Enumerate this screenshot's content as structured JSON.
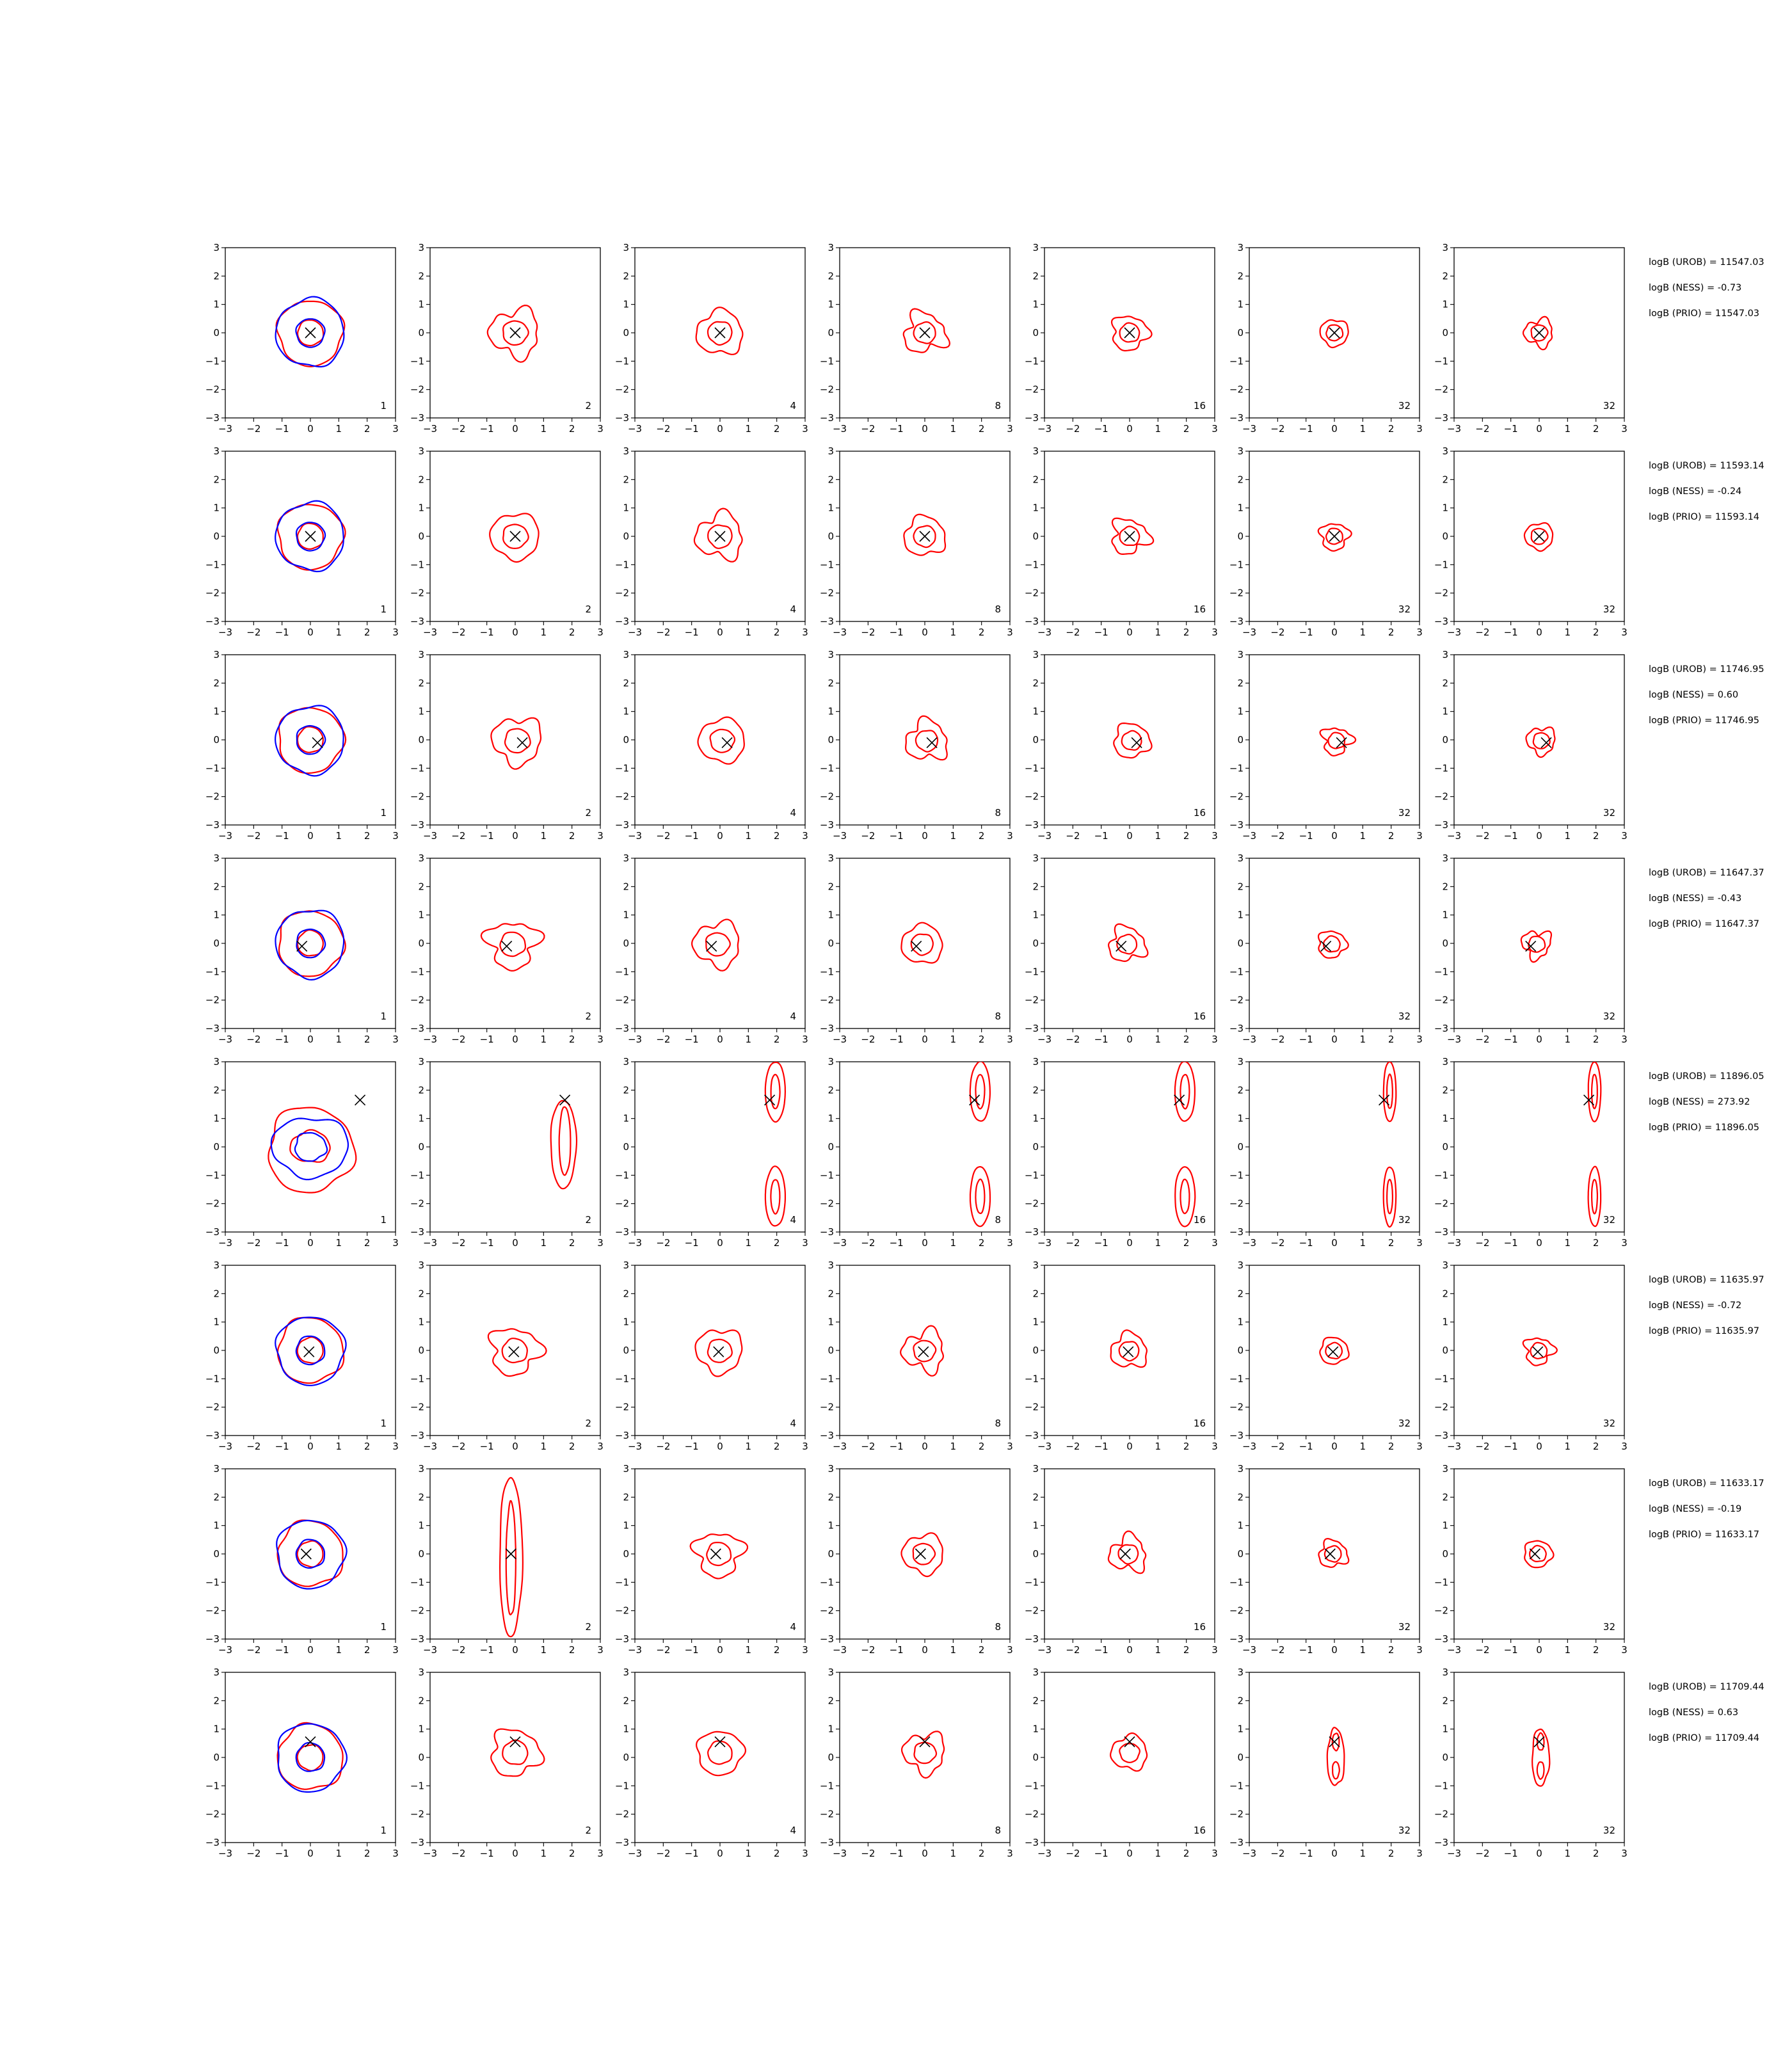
{
  "chart_data": {
    "type": "contour-grid",
    "title": "",
    "xlabel": "",
    "ylabel": "",
    "xlim": [
      -3,
      3
    ],
    "ylim": [
      -3,
      3
    ],
    "ticks": [
      -3,
      -2,
      -1,
      0,
      1,
      2,
      3
    ],
    "grid": false,
    "line_colors": [
      "#ff0000",
      "#0000ff"
    ],
    "columns": [
      "1",
      "2",
      "4",
      "8",
      "16",
      "32",
      "32"
    ],
    "rows": [
      {
        "true_point": [
          0.0,
          0.0
        ],
        "texts": [
          "logB (UROB) = 11547.03",
          "logB (NESS) = -0.73",
          "logB (PRIO) = 11547.03"
        ]
      },
      {
        "true_point": [
          0.0,
          0.0
        ],
        "texts": [
          "logB (UROB) = 11593.14",
          "logB (NESS) = -0.24",
          "logB (PRIO) = 11593.14"
        ]
      },
      {
        "true_point": [
          0.25,
          -0.1
        ],
        "texts": [
          "logB (UROB) = 11746.95",
          "logB (NESS) = 0.60",
          "logB (PRIO) = 11746.95"
        ]
      },
      {
        "true_point": [
          -0.3,
          -0.1
        ],
        "texts": [
          "logB (UROB) = 11647.37",
          "logB (NESS) = -0.43",
          "logB (PRIO) = 11647.37"
        ]
      },
      {
        "true_point": [
          1.75,
          1.65
        ],
        "texts": [
          "logB (UROB) = 11896.05",
          "logB (NESS) = 273.92",
          "logB (PRIO) = 11896.05"
        ]
      },
      {
        "true_point": [
          -0.05,
          -0.05
        ],
        "texts": [
          "logB (UROB) = 11635.97",
          "logB (NESS) = -0.72",
          "logB (PRIO) = 11635.97"
        ]
      },
      {
        "true_point": [
          -0.15,
          0.0
        ],
        "texts": [
          "logB (UROB) = 11633.17",
          "logB (NESS) = -0.19",
          "logB (PRIO) = 11633.17"
        ]
      },
      {
        "true_point": [
          0.0,
          0.55
        ],
        "texts": [
          "logB (UROB) = 11709.44",
          "logB (NESS) = 0.63",
          "logB (PRIO) = 11709.44"
        ]
      }
    ]
  }
}
